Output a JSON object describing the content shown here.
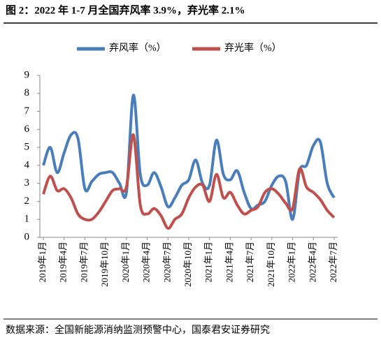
{
  "title": "图 2：2022 年 1-7 月全国弃风率 3.9%，弃光率 2.1%",
  "source": "数据来源：全国新能源消纳监测预警中心，国泰君安证券研究",
  "chart_data": {
    "type": "line",
    "categories": [
      "2019年1月",
      null,
      null,
      "2019年4月",
      null,
      null,
      "2019年7月",
      null,
      null,
      "2019年10月",
      null,
      null,
      "2020年1月",
      null,
      null,
      "2020年4月",
      null,
      null,
      "2020年7月",
      null,
      null,
      "2020年10月",
      null,
      null,
      "2021年1月",
      null,
      null,
      "2021年4月",
      null,
      null,
      "2021年7月",
      null,
      null,
      "2021年10月",
      null,
      null,
      "2022年1月",
      null,
      null,
      "2022年4月",
      null,
      null,
      "2022年7月"
    ],
    "series": [
      {
        "name": "弃风率（%）",
        "color": "#4a7ebb",
        "values": [
          4.0,
          5.0,
          3.6,
          4.7,
          5.7,
          5.5,
          2.7,
          3.1,
          3.5,
          3.6,
          3.6,
          3.0,
          2.5,
          7.9,
          3.5,
          2.9,
          3.6,
          2.8,
          1.7,
          2.2,
          2.9,
          3.2,
          4.3,
          3.0,
          2.9,
          5.4,
          3.5,
          3.2,
          3.7,
          2.5,
          1.6,
          1.8,
          2.0,
          2.9,
          3.4,
          3.1,
          1.0,
          3.7,
          4.0,
          5.1,
          5.3,
          3.0,
          2.2
        ]
      },
      {
        "name": "弃光率（%）",
        "color": "#c0504d",
        "values": [
          2.4,
          3.4,
          2.6,
          2.7,
          2.2,
          1.3,
          1.0,
          1.0,
          1.4,
          2.0,
          2.6,
          2.7,
          2.8,
          5.7,
          1.8,
          1.3,
          1.6,
          1.2,
          0.5,
          1.0,
          1.3,
          2.2,
          2.8,
          2.9,
          2.0,
          3.5,
          2.2,
          2.5,
          1.8,
          1.3,
          1.5,
          1.7,
          2.5,
          2.7,
          2.4,
          1.9,
          1.6,
          3.8,
          2.8,
          2.5,
          2.1,
          1.5,
          1.1
        ]
      }
    ],
    "ylim": [
      0,
      9
    ],
    "yticks": [
      0,
      1,
      2,
      3,
      4,
      5,
      6,
      7,
      8,
      9
    ],
    "legend": "top"
  }
}
